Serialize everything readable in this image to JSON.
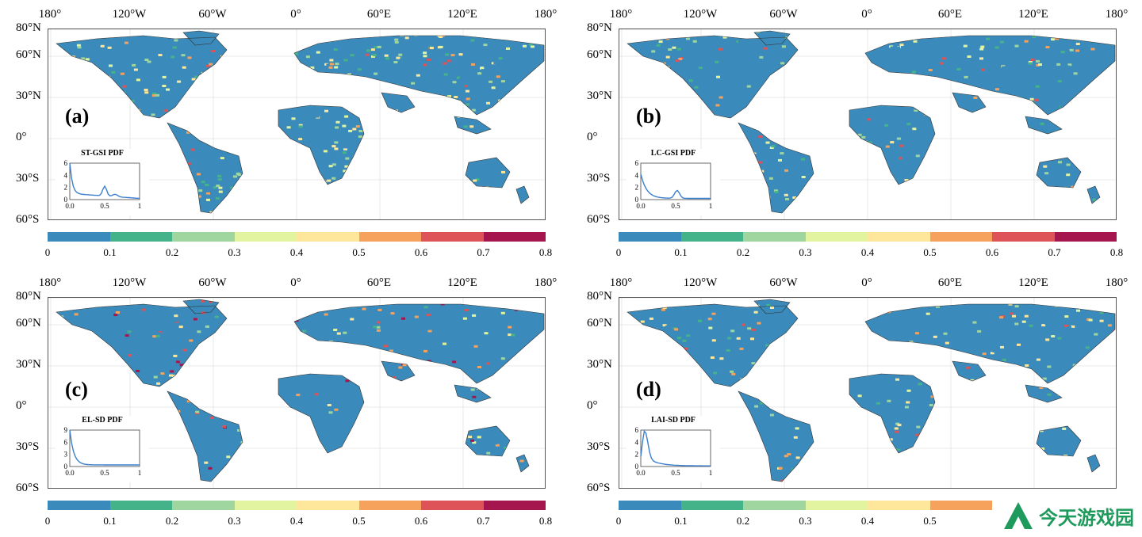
{
  "axes": {
    "lon_ticks": [
      "180°",
      "120°W",
      "60°W",
      "0°",
      "60°E",
      "120°E",
      "180°"
    ],
    "lat_ticks": [
      "80°N",
      "60°N",
      "30°N",
      "0°",
      "30°S",
      "60°S"
    ]
  },
  "colorbar": {
    "colors": [
      "#3a8bbb",
      "#45b389",
      "#9fd69f",
      "#e3f4a0",
      "#fee79a",
      "#f7a25c",
      "#dd5358",
      "#a5164e"
    ],
    "ticks": [
      "0",
      "0.1",
      "0.2",
      "0.3",
      "0.4",
      "0.5",
      "0.6",
      "0.7",
      "0.8"
    ]
  },
  "panels": [
    {
      "label": "(a)",
      "pdf_title": "ST-GSI PDF",
      "inset_y_ticks": [
        "6",
        "4",
        "2",
        "0"
      ],
      "inset_x_ticks": [
        "0.0",
        "0.5",
        "1"
      ],
      "colorbar_segments": 8
    },
    {
      "label": "(b)",
      "pdf_title": "LC-GSI PDF",
      "inset_y_ticks": [
        "6",
        "4",
        "2",
        "0"
      ],
      "inset_x_ticks": [
        "0.0",
        "0.5",
        "1"
      ],
      "colorbar_segments": 8
    },
    {
      "label": "(c)",
      "pdf_title": "EL-SD PDF",
      "inset_y_ticks": [
        "9",
        "6",
        "3",
        "0"
      ],
      "inset_x_ticks": [
        "0.0",
        "0.5",
        "1"
      ],
      "colorbar_segments": 8
    },
    {
      "label": "(d)",
      "pdf_title": "LAI-SD PDF",
      "inset_y_ticks": [
        "6",
        "4",
        "2",
        "0"
      ],
      "inset_x_ticks": [
        "0.0",
        "0.5",
        "1"
      ],
      "colorbar_segments": 6
    }
  ],
  "watermark": {
    "text": "今天游戏园"
  }
}
